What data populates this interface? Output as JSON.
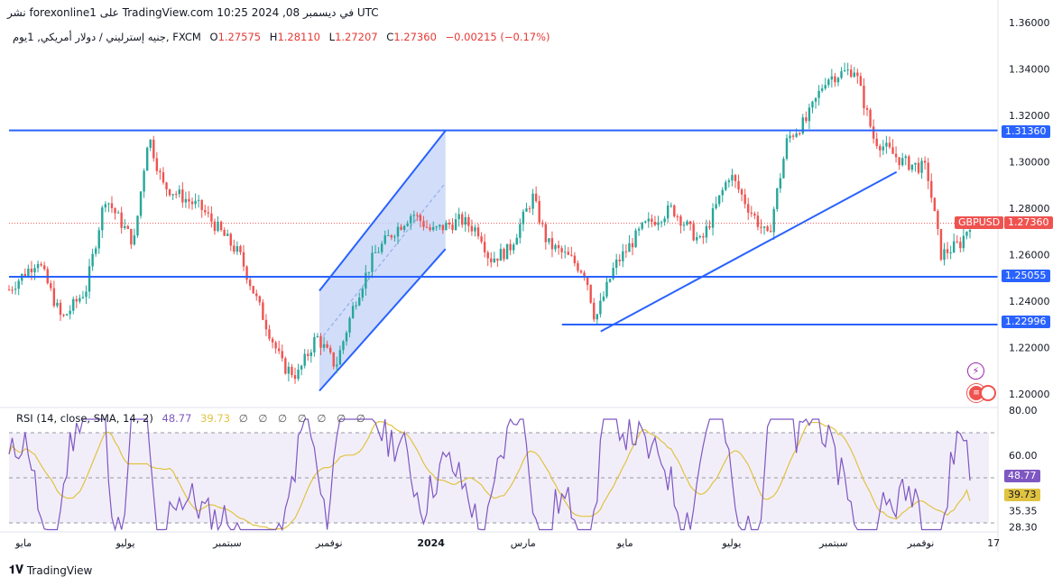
{
  "header": {
    "publisher_line": "نشر forexonline1 على TradingView.com 10:25 2024 ,08 في ديسمبر UTC"
  },
  "symbol_bar": {
    "symbol": "جنيه إسترليني / دولار أمريكي, 1يوم, FXCM",
    "o_label": "O",
    "o_value": "1.27575",
    "h_label": "H",
    "h_value": "1.28110",
    "l_label": "L",
    "l_value": "1.27207",
    "c_label": "C",
    "c_value": "1.27360",
    "change": "−0.00215 (−0.17%)"
  },
  "rsi_legend": {
    "name": "RSI (14, close, SMA, 14, 2)",
    "rsi_value": "48.77",
    "sma_value": "39.73",
    "icons": "∅ ∅ ∅ ∅ ∅ ∅ ∅"
  },
  "price_axis": {
    "ticks": [
      "1.36000",
      "1.34000",
      "1.32000",
      "1.30000",
      "1.28000",
      "1.26000",
      "1.24000",
      "1.22000",
      "1.20000"
    ]
  },
  "rsi_axis": {
    "ticks": [
      "80.00",
      "60.00",
      "35.35",
      "28.30"
    ]
  },
  "time_axis": {
    "labels": [
      "مايو",
      "يوليو",
      "سبتمبر",
      "نوفمبر",
      "2024",
      "مارس",
      "مايو",
      "يوليو",
      "سبتمبر",
      "نوفمبر",
      "17"
    ]
  },
  "level_tags": {
    "resistance": "1.31360",
    "support": "1.25055",
    "low_support": "1.22996",
    "current_symbol": "GBPUSD",
    "current_price": "1.27360",
    "rsi_current": "48.77",
    "rsi_sma": "39.73"
  },
  "footer": {
    "brand": "TradingView"
  },
  "colors": {
    "up": "#26a69a",
    "down": "#ef5350",
    "levels": "#2962ff",
    "rsi": "#7e57c2",
    "rsi_sma": "#e0c341",
    "channel_fill": "#c5d4f7"
  },
  "chart_data": [
    {
      "type": "candlestick",
      "title": "جنيه إسترليني / دولار أمريكي, 1يوم, FXCM",
      "ylim": [
        1.195,
        1.362
      ],
      "x_labels": [
        "مايو",
        "يوليو",
        "سبتمبر",
        "نوفمبر",
        "2024",
        "مارس",
        "مايو",
        "يوليو",
        "سبتمبر",
        "نوفمبر",
        "17"
      ],
      "horizontal_levels": [
        1.3136,
        1.25055,
        1.22996
      ],
      "last_close": 1.2736,
      "path": [
        [
          0,
          1.245
        ],
        [
          0.03,
          1.258
        ],
        [
          0.055,
          1.232
        ],
        [
          0.08,
          1.245
        ],
        [
          0.1,
          1.285
        ],
        [
          0.13,
          1.265
        ],
        [
          0.145,
          1.312
        ],
        [
          0.16,
          1.29
        ],
        [
          0.2,
          1.28
        ],
        [
          0.24,
          1.26
        ],
        [
          0.26,
          1.238
        ],
        [
          0.285,
          1.212
        ],
        [
          0.3,
          1.208
        ],
        [
          0.32,
          1.225
        ],
        [
          0.34,
          1.212
        ],
        [
          0.36,
          1.24
        ],
        [
          0.38,
          1.26
        ],
        [
          0.4,
          1.27
        ],
        [
          0.42,
          1.278
        ],
        [
          0.44,
          1.27
        ],
        [
          0.47,
          1.275
        ],
        [
          0.49,
          1.27
        ],
        [
          0.5,
          1.258
        ],
        [
          0.52,
          1.262
        ],
        [
          0.545,
          1.285
        ],
        [
          0.56,
          1.265
        ],
        [
          0.585,
          1.258
        ],
        [
          0.6,
          1.252
        ],
        [
          0.61,
          1.232
        ],
        [
          0.63,
          1.255
        ],
        [
          0.66,
          1.272
        ],
        [
          0.69,
          1.28
        ],
        [
          0.72,
          1.265
        ],
        [
          0.75,
          1.295
        ],
        [
          0.77,
          1.28
        ],
        [
          0.79,
          1.267
        ],
        [
          0.81,
          1.31
        ],
        [
          0.83,
          1.318
        ],
        [
          0.85,
          1.336
        ],
        [
          0.88,
          1.34
        ],
        [
          0.9,
          1.31
        ],
        [
          0.93,
          1.3
        ],
        [
          0.955,
          1.297
        ],
        [
          0.97,
          1.26
        ],
        [
          0.99,
          1.265
        ],
        [
          1,
          1.2736
        ]
      ]
    },
    {
      "type": "line",
      "title": "RSI (14, close, SMA, 14, 2)",
      "ylim": [
        26,
        82
      ],
      "y_ticks": [
        80.0,
        60.0,
        35.35,
        28.3
      ],
      "series": [
        {
          "name": "RSI",
          "last": 48.77
        },
        {
          "name": "SMA",
          "last": 39.73
        }
      ]
    }
  ]
}
